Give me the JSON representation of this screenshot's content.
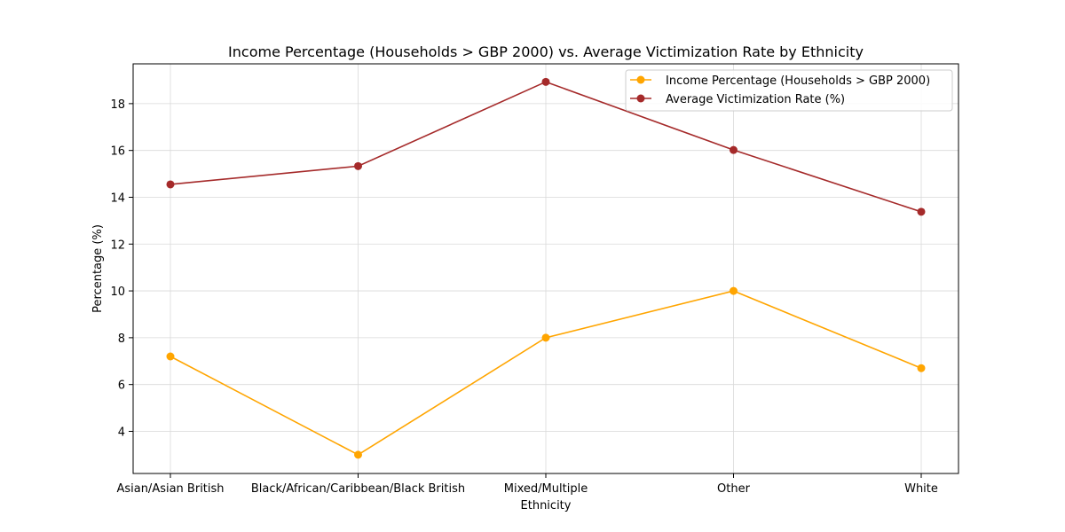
{
  "chart_data": {
    "type": "line",
    "title": "Income Percentage (Households > GBP 2000) vs. Average Victimization Rate by Ethnicity",
    "xlabel": "Ethnicity",
    "ylabel": "Percentage (%)",
    "categories": [
      "Asian/Asian British",
      "Black/African/Caribbean/Black British",
      "Mixed/Multiple",
      "Other",
      "White"
    ],
    "ylim": [
      2.2,
      19.7
    ],
    "yticks": [
      4,
      6,
      8,
      10,
      12,
      14,
      16,
      18
    ],
    "grid": true,
    "legend_position": "top-right",
    "series": [
      {
        "name": "Income Percentage (Households > GBP 2000)",
        "values": [
          7.2,
          3.0,
          8.0,
          10.0,
          6.7
        ],
        "color": "#FFA500",
        "marker": "circle"
      },
      {
        "name": "Average Victimization Rate (%)",
        "values": [
          14.55,
          15.33,
          18.93,
          16.02,
          13.38
        ],
        "color": "#A52A2A",
        "marker": "circle"
      }
    ]
  }
}
